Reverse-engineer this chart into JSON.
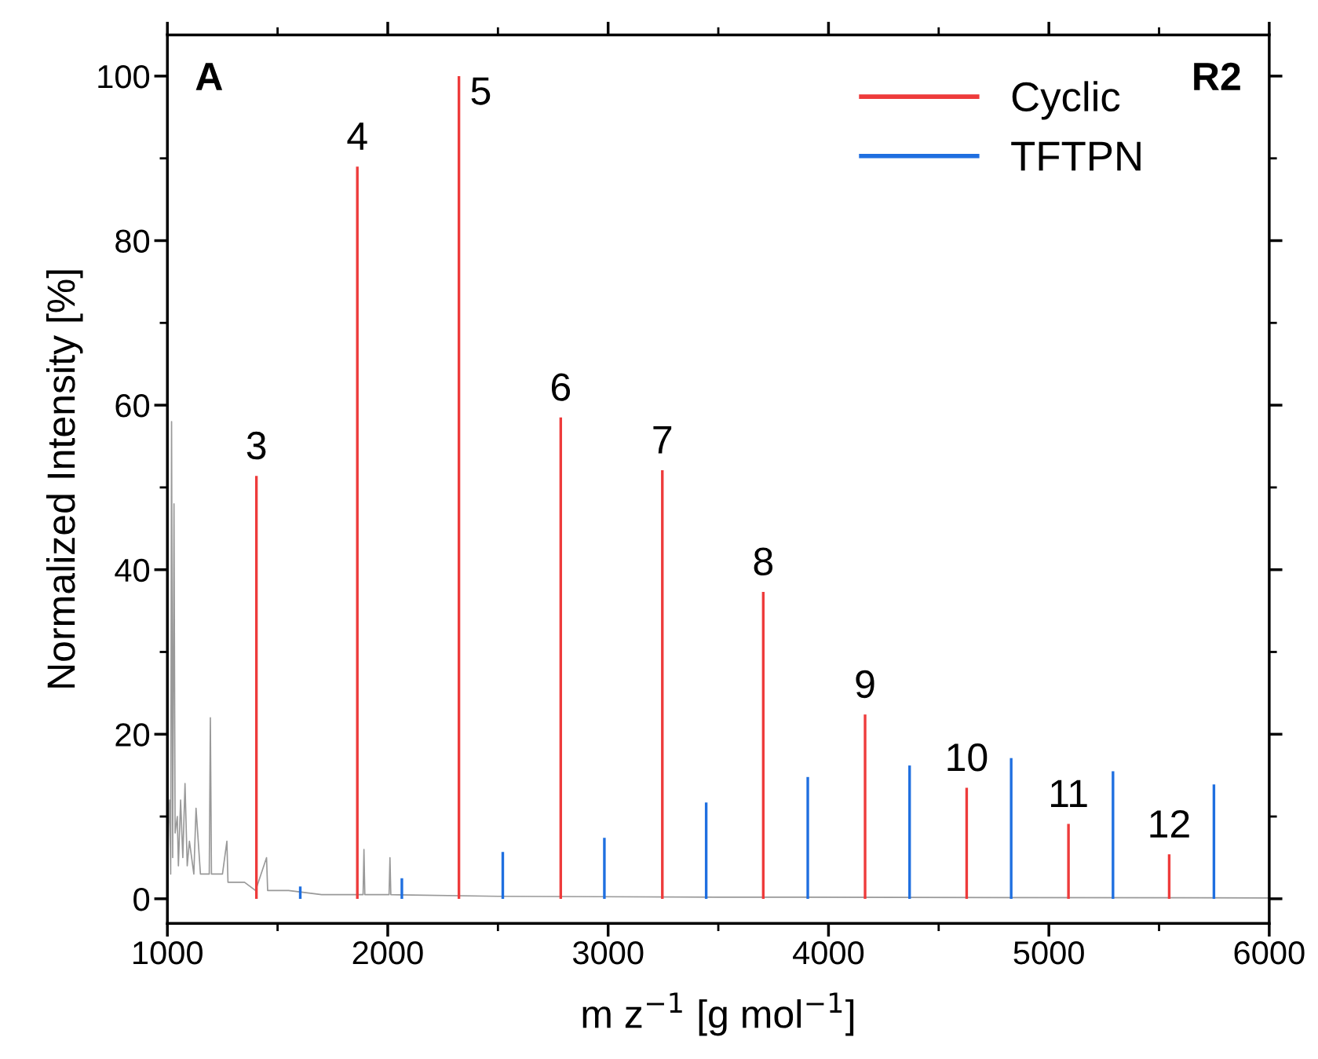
{
  "chart_data": {
    "type": "line",
    "xlabel": "m z$^{−1}$ [g mol$^{−1}$]",
    "ylabel": "Normalized Intensity [%]",
    "xlim": [
      1000,
      6000
    ],
    "xticks": [
      1000,
      2000,
      3000,
      4000,
      5000,
      6000
    ],
    "ylim": [
      -3,
      105
    ],
    "yticks": [
      0,
      20,
      40,
      60,
      80,
      100
    ],
    "grid": false,
    "legend": "top right",
    "series": [
      {
        "color": "#999999",
        "x": [
          1000,
          1005,
          1010,
          1015,
          1019,
          1024,
          1030,
          1035,
          1045,
          1050,
          1060,
          1070,
          1080,
          1090,
          1100,
          1120,
          1130,
          1150,
          1190,
          1195,
          1200,
          1250,
          1270,
          1275,
          1350,
          1400,
          1450,
          1455,
          1550,
          1700,
          1888,
          1892,
          1896,
          2006,
          2010,
          2014,
          2500,
          3500,
          6000
        ],
        "values": [
          0,
          9,
          12,
          3,
          58,
          5,
          48,
          8,
          10,
          4,
          12,
          5,
          14,
          4,
          7,
          3,
          11,
          3,
          3,
          22,
          3,
          3,
          7,
          2,
          2,
          1,
          5,
          1,
          1,
          0.5,
          0.5,
          6,
          0.5,
          0.5,
          5,
          0.5,
          0.3,
          0.2,
          0.1
        ]
      },
      {
        "type": "bar",
        "name": "Cyclic",
        "color": "#ee3b3b",
        "x": [
          1404,
          1862,
          2323,
          2785,
          3246,
          3704,
          4166,
          4627,
          5089,
          5546
        ],
        "values": [
          51.4,
          89.0,
          100,
          58.5,
          52.1,
          37.3,
          22.4,
          13.5,
          9.1,
          5.4
        ]
      },
      {
        "type": "bar",
        "name": "TFTPN",
        "color": "#1f6fe0",
        "x": [
          1603,
          2064,
          2522,
          2983,
          3445,
          3906,
          4368,
          4829,
          5291,
          5749
        ],
        "values": [
          1.5,
          2.5,
          5.7,
          7.4,
          11.7,
          14.8,
          16.2,
          17.1,
          15.5,
          13.9
        ]
      }
    ],
    "annotations": [
      "A",
      "R2",
      {
        "text": "3",
        "x": 1404,
        "y": 51.4
      },
      {
        "text": "4",
        "x": 1862,
        "y": 89.0
      },
      {
        "text": "5",
        "x": 2323,
        "y": 100
      },
      {
        "text": "6",
        "x": 2785,
        "y": 58.5
      },
      {
        "text": "7",
        "x": 3246,
        "y": 52.1
      },
      {
        "text": "8",
        "x": 3704,
        "y": 37.3
      },
      {
        "text": "9",
        "x": 4166,
        "y": 22.4
      },
      {
        "text": "10",
        "x": 4627,
        "y": 13.5
      },
      {
        "text": "11",
        "x": 5089,
        "y": 9.1
      },
      {
        "text": "12",
        "x": 5546,
        "y": 5.4
      }
    ]
  }
}
